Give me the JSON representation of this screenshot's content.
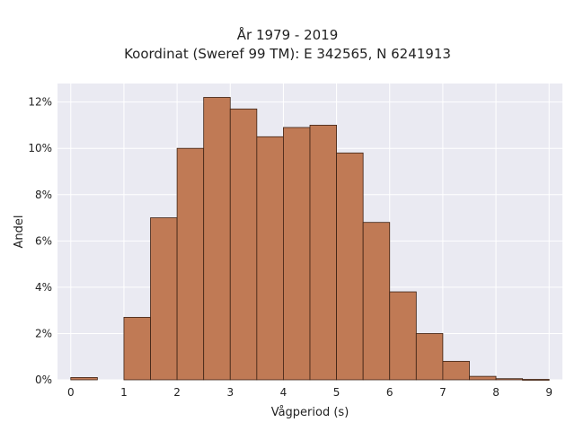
{
  "chart_data": {
    "type": "bar",
    "title_line1": "År 1979 - 2019",
    "title_line2": "Koordinat (Sweref 99 TM): E 342565, N 6241913",
    "xlabel": "Vågperiod (s)",
    "ylabel": "Andel",
    "x_ticks": [
      "0",
      "1",
      "2",
      "3",
      "4",
      "5",
      "6",
      "7",
      "8",
      "9"
    ],
    "y_ticks": [
      "0%",
      "2%",
      "4%",
      "6%",
      "8%",
      "10%",
      "12%"
    ],
    "xlim": [
      -0.25,
      9.25
    ],
    "ylim": [
      0,
      12.8
    ],
    "bin_width": 0.5,
    "bins": [
      {
        "start": 0.0,
        "value": 0.1
      },
      {
        "start": 0.5,
        "value": 0.0
      },
      {
        "start": 1.0,
        "value": 2.7
      },
      {
        "start": 1.5,
        "value": 7.0
      },
      {
        "start": 2.0,
        "value": 10.0
      },
      {
        "start": 2.5,
        "value": 12.2
      },
      {
        "start": 3.0,
        "value": 11.7
      },
      {
        "start": 3.5,
        "value": 10.5
      },
      {
        "start": 4.0,
        "value": 10.9
      },
      {
        "start": 4.5,
        "value": 11.0
      },
      {
        "start": 5.0,
        "value": 9.8
      },
      {
        "start": 5.5,
        "value": 6.8
      },
      {
        "start": 6.0,
        "value": 3.8
      },
      {
        "start": 6.5,
        "value": 2.0
      },
      {
        "start": 7.0,
        "value": 0.8
      },
      {
        "start": 7.5,
        "value": 0.15
      },
      {
        "start": 8.0,
        "value": 0.05
      },
      {
        "start": 8.5,
        "value": 0.02
      }
    ],
    "grid": true,
    "colors": {
      "bar_fill": "#c07a55",
      "bar_edge": "#3d2214",
      "plot_bg": "#eaeaf2",
      "grid": "#ffffff"
    }
  }
}
